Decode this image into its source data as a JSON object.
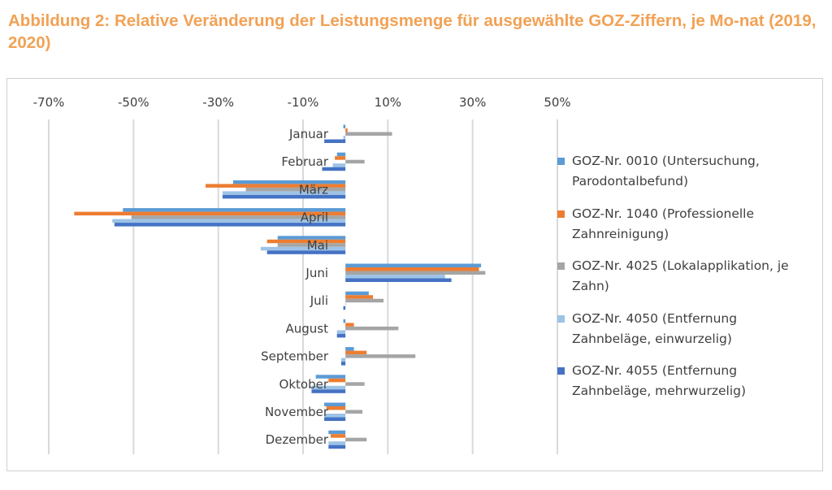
{
  "title": "Abbildung 2: Relative Veränderung der Leistungsmenge für ausgewählte GOZ-Ziffern, je Mo-nat (2019, 2020)",
  "chart_data": {
    "type": "bar",
    "orientation": "horizontal",
    "xlim": [
      -70,
      50
    ],
    "x_ticks": [
      -70,
      -50,
      -30,
      -10,
      10,
      30,
      50
    ],
    "x_tick_labels": [
      "-70%",
      "-50%",
      "-30%",
      "-10%",
      "10%",
      "30%",
      "50%"
    ],
    "xaxis_position": "top",
    "grid": "vertical",
    "legend_position": "right",
    "categories": [
      "Januar",
      "Februar",
      "März",
      "April",
      "Mai",
      "Juni",
      "Juli",
      "August",
      "September",
      "Oktober",
      "November",
      "Dezember"
    ],
    "series": [
      {
        "name": "GOZ-Nr. 0010 (Untersuchung, Parodontalbefund)",
        "color": "#5b9bd5",
        "values": [
          -0.5,
          -2,
          -26.5,
          -52.5,
          -16,
          32,
          5.5,
          -0.5,
          2,
          -7,
          -5,
          -4
        ]
      },
      {
        "name": "GOZ-Nr. 1040 (Professionelle Zahnreinigung)",
        "color": "#ed7d31",
        "values": [
          0.5,
          -2.5,
          -33,
          -64,
          -18.5,
          31.5,
          6.5,
          2,
          5,
          -4,
          -4.5,
          -3.5
        ]
      },
      {
        "name": "GOZ-Nr. 4025 (Lokalapplikation, je Zahn)",
        "color": "#a5a5a5",
        "values": [
          11,
          4.5,
          -23.5,
          -50.5,
          -16,
          33,
          9,
          12.5,
          16.5,
          4.5,
          4,
          5
        ]
      },
      {
        "name": "GOZ-Nr. 4050 (Entfernung Zahnbeläge, einwurzelig)",
        "color": "#9dc3e6",
        "values": [
          -0.5,
          -3,
          -29,
          -55,
          -20,
          23.5,
          0,
          -2,
          -1,
          -8,
          -5,
          -4
        ]
      },
      {
        "name": "GOZ-Nr. 4055 (Entfernung Zahnbeläge, mehrwurzelig)",
        "color": "#4472c4",
        "values": [
          -5,
          -5.5,
          -29,
          -54.5,
          -18.5,
          25,
          -0.5,
          -2,
          -1,
          -8,
          -5,
          -4
        ]
      }
    ]
  },
  "legend": [
    {
      "line1": "GOZ-Nr. 0010 (Untersuchung,",
      "line2": "Parodontalbefund)"
    },
    {
      "line1": "GOZ-Nr. 1040 (Professionelle",
      "line2": "Zahnreinigung)"
    },
    {
      "line1": "GOZ-Nr. 4025 (Lokalapplikation, je",
      "line2": "Zahn)"
    },
    {
      "line1": "GOZ-Nr. 4050 (Entfernung",
      "line2": "Zahnbeläge, einwurzelig)"
    },
    {
      "line1": "GOZ-Nr. 4055 (Entfernung",
      "line2": "Zahnbeläge, mehrwurzelig)"
    }
  ]
}
